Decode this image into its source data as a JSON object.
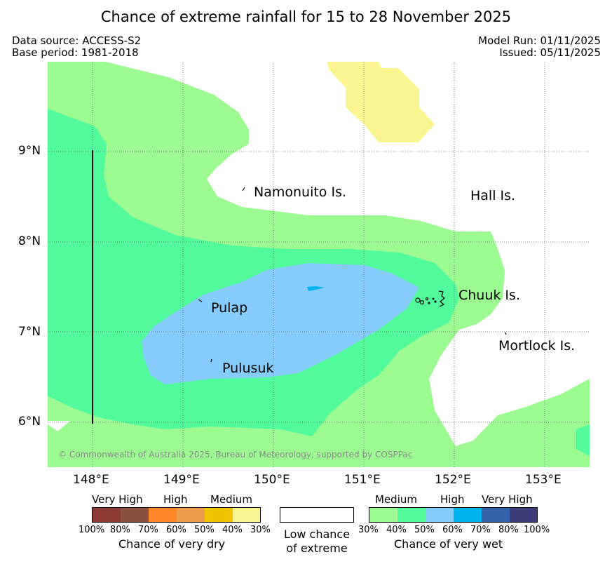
{
  "title": "Chance of extreme rainfall for 15 to 28 November 2025",
  "meta": {
    "source": "Data source: ACCESS-S2",
    "base_period": "Base period: 1981-2018",
    "model_run": "Model Run: 01/11/2025",
    "issued": "Issued: 05/11/2025"
  },
  "axes": {
    "x_ticks": [
      "148°E",
      "149°E",
      "150°E",
      "151°E",
      "152°E",
      "153°E"
    ],
    "y_ticks": [
      "9°N",
      "8°N",
      "7°N",
      "6°N"
    ]
  },
  "places": {
    "namonuito": "Namonuito Is.",
    "hall": "Hall Is.",
    "chuuk": "Chuuk Is.",
    "pulap": "Pulap",
    "pulusuk": "Pulusuk",
    "mortlock": "Mortlock Is."
  },
  "copyright": "© Commonwealth of Australia 2025, Bureau of Meteorology, supported by COSPPac",
  "legend": {
    "dry": {
      "categories": [
        "Very High",
        "High",
        "Medium"
      ],
      "percent_labels": [
        "100%",
        "80%",
        "70%",
        "60%",
        "50%",
        "40%",
        "30%"
      ],
      "colors": [
        "#8b3a34",
        "#8b5140",
        "#ff8628",
        "#ee9c4a",
        "#efc300",
        "#fbf591"
      ],
      "title": "Chance of very dry"
    },
    "low": {
      "line1": "Low chance",
      "line2": "of extreme"
    },
    "wet": {
      "categories": [
        "Medium",
        "High",
        "Very High"
      ],
      "percent_labels": [
        "30%",
        "40%",
        "50%",
        "60%",
        "70%",
        "80%",
        "100%"
      ],
      "colors": [
        "#9bfb91",
        "#51fb9b",
        "#85cbfc",
        "#00b3eb",
        "#3462a8",
        "#3c3c7a"
      ],
      "title": "Chance of very wet"
    }
  }
}
